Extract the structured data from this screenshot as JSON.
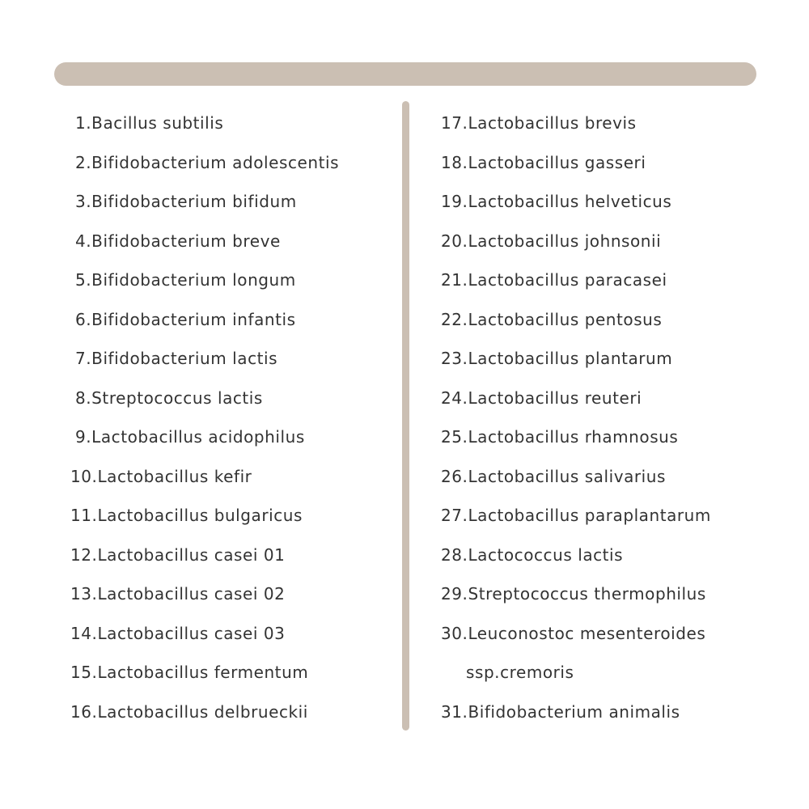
{
  "colors": {
    "accent": "#cbbfb3",
    "text": "#333333"
  },
  "left_column": [
    "1.Bacillus subtilis",
    "2.Bifidobacterium adolescentis",
    "3.Bifidobacterium bifidum",
    "4.Bifidobacterium breve",
    "5.Bifidobacterium longum",
    "6.Bifidobacterium infantis",
    "7.Bifidobacterium lactis",
    "8.Streptococcus lactis",
    "9.Lactobacillus acidophilus",
    "10.Lactobacillus kefir",
    "11.Lactobacillus bulgaricus",
    "12.Lactobacillus casei 01",
    "13.Lactobacillus casei 02",
    "14.Lactobacillus casei 03",
    "15.Lactobacillus fermentum",
    "16.Lactobacillus delbrueckii"
  ],
  "right_column": [
    "17.Lactobacillus brevis",
    "18.Lactobacillus gasseri",
    "19.Lactobacillus helveticus",
    "20.Lactobacillus johnsonii",
    "21.Lactobacillus paracasei",
    "22.Lactobacillus pentosus",
    "23.Lactobacillus plantarum",
    "24.Lactobacillus reuteri",
    "25.Lactobacillus rhamnosus",
    "26.Lactobacillus salivarius",
    "27.Lactobacillus paraplantarum",
    "28.Lactococcus lactis",
    "29.Streptococcus thermophilus",
    "30.Leuconostoc mesenteroides",
    "ssp.cremoris",
    "31.Bifidobacterium animalis"
  ]
}
